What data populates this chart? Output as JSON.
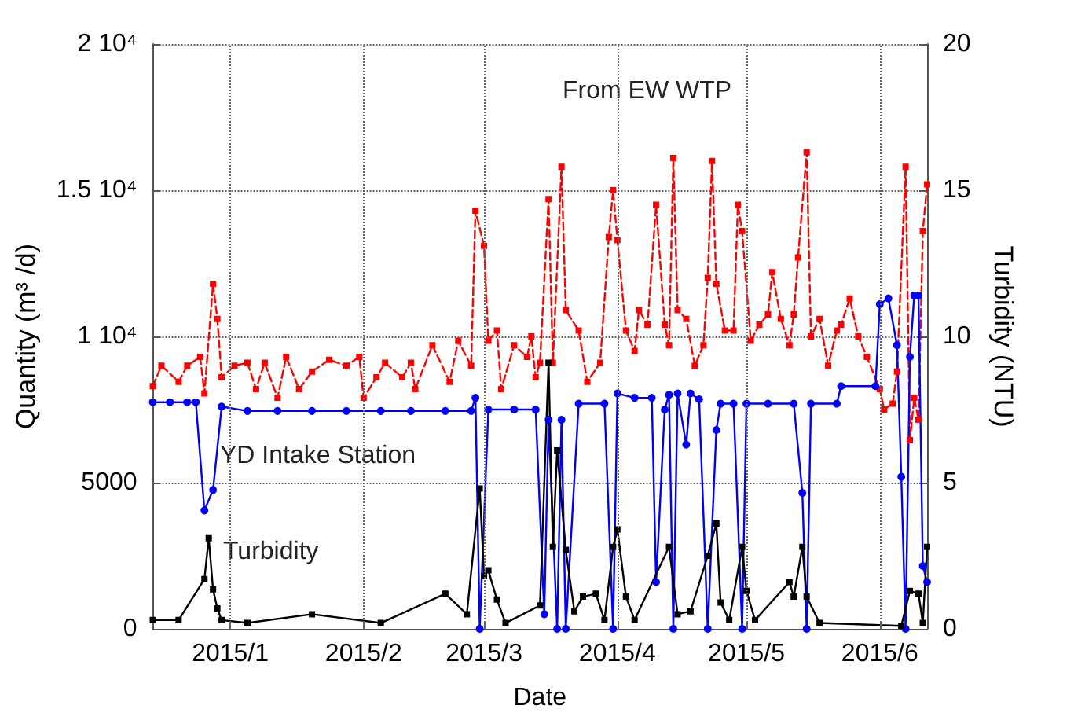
{
  "chart_data": {
    "type": "line",
    "xlabel": "Date",
    "ylabel": "Quantity (m³ /d)",
    "y2label": "Turbidity (NTU)",
    "xlim": [
      "2014-12-14",
      "2015-06-12"
    ],
    "xticks": [
      {
        "value": "2015-01-01",
        "label": "2015/1"
      },
      {
        "value": "2015-02-01",
        "label": "2015/2"
      },
      {
        "value": "2015-03-01",
        "label": "2015/3"
      },
      {
        "value": "2015-04-01",
        "label": "2015/4"
      },
      {
        "value": "2015-05-01",
        "label": "2015/5"
      },
      {
        "value": "2015-06-01",
        "label": "2015/6"
      }
    ],
    "ylim": [
      0,
      20000
    ],
    "yticks": [
      0,
      5000,
      {
        "value": 10000,
        "label": "1 10⁴"
      },
      {
        "value": 15000,
        "label": "1.5 10⁴"
      },
      {
        "value": 20000,
        "label": "2 10⁴"
      }
    ],
    "y2lim": [
      0,
      20
    ],
    "y2ticks": [
      0,
      5,
      10,
      15,
      20
    ],
    "grid": true,
    "legend": false,
    "series": [
      {
        "name": "From EW WTP",
        "color": "#ff0000",
        "marker": "square",
        "line_style": "dashed",
        "x": [
          "2014-12-14",
          "2014-12-16",
          "2014-12-20",
          "2014-12-22",
          "2014-12-25",
          "2014-12-26",
          "2014-12-28",
          "2014-12-29",
          "2014-12-30",
          "2015-01-02",
          "2015-01-05",
          "2015-01-07",
          "2015-01-09",
          "2015-01-12",
          "2015-01-14",
          "2015-01-17",
          "2015-01-20",
          "2015-01-24",
          "2015-01-28",
          "2015-01-31",
          "2015-02-01",
          "2015-02-04",
          "2015-02-06",
          "2015-02-10",
          "2015-02-12",
          "2015-02-13",
          "2015-02-17",
          "2015-02-21",
          "2015-02-23",
          "2015-02-26",
          "2015-02-27",
          "2015-03-01",
          "2015-03-02",
          "2015-03-04",
          "2015-03-05",
          "2015-03-08",
          "2015-03-11",
          "2015-03-12",
          "2015-03-13",
          "2015-03-14",
          "2015-03-16",
          "2015-03-17",
          "2015-03-19",
          "2015-03-20",
          "2015-03-23",
          "2015-03-25",
          "2015-03-28",
          "2015-03-30",
          "2015-03-31",
          "2015-04-01",
          "2015-04-03",
          "2015-04-05",
          "2015-04-06",
          "2015-04-08",
          "2015-04-10",
          "2015-04-12",
          "2015-04-13",
          "2015-04-14",
          "2015-04-15",
          "2015-04-17",
          "2015-04-19",
          "2015-04-21",
          "2015-04-22",
          "2015-04-23",
          "2015-04-24",
          "2015-04-26",
          "2015-04-28",
          "2015-04-29",
          "2015-04-30",
          "2015-05-02",
          "2015-05-04",
          "2015-05-06",
          "2015-05-07",
          "2015-05-09",
          "2015-05-11",
          "2015-05-12",
          "2015-05-13",
          "2015-05-15",
          "2015-05-16",
          "2015-05-18",
          "2015-05-20",
          "2015-05-22",
          "2015-05-23",
          "2015-05-25",
          "2015-05-27",
          "2015-05-29",
          "2015-06-01",
          "2015-06-02",
          "2015-06-04",
          "2015-06-05",
          "2015-06-07",
          "2015-06-08",
          "2015-06-09",
          "2015-06-10",
          "2015-06-11",
          "2015-06-12"
        ],
        "values": [
          8300,
          9000,
          8450,
          9000,
          9300,
          8050,
          11800,
          10600,
          8600,
          9000,
          9100,
          8200,
          9100,
          7900,
          9300,
          8200,
          8800,
          9200,
          9000,
          9300,
          7900,
          8600,
          9100,
          8600,
          9100,
          8200,
          9700,
          8450,
          9850,
          9000,
          14300,
          13100,
          9850,
          10200,
          8200,
          9700,
          9300,
          10000,
          8600,
          9100,
          14700,
          9100,
          15800,
          10900,
          10200,
          8450,
          9100,
          13400,
          15000,
          13300,
          10200,
          9500,
          10900,
          10400,
          14500,
          10400,
          9700,
          16100,
          10900,
          10600,
          9000,
          9700,
          12000,
          16000,
          11800,
          10200,
          10200,
          14500,
          13600,
          9850,
          10400,
          10750,
          12200,
          10600,
          9700,
          10750,
          12700,
          16300,
          10000,
          10600,
          9000,
          10200,
          10400,
          11300,
          10000,
          9300,
          8200,
          7500,
          7700,
          8800,
          15800,
          6450,
          7900,
          7150,
          13600,
          15200
        ]
      },
      {
        "name": "YD Intake Station",
        "color": "#0000ff",
        "marker": "circle",
        "line_style": "solid",
        "x": [
          "2014-12-14",
          "2014-12-18",
          "2014-12-22",
          "2014-12-24",
          "2014-12-26",
          "2014-12-28",
          "2014-12-30",
          "2015-01-05",
          "2015-01-12",
          "2015-01-20",
          "2015-01-28",
          "2015-02-05",
          "2015-02-12",
          "2015-02-20",
          "2015-02-26",
          "2015-02-27",
          "2015-02-28",
          "2015-03-02",
          "2015-03-08",
          "2015-03-13",
          "2015-03-15",
          "2015-03-16",
          "2015-03-18",
          "2015-03-19",
          "2015-03-20",
          "2015-03-23",
          "2015-03-29",
          "2015-03-31",
          "2015-04-01",
          "2015-04-05",
          "2015-04-09",
          "2015-04-10",
          "2015-04-12",
          "2015-04-13",
          "2015-04-14",
          "2015-04-15",
          "2015-04-17",
          "2015-04-18",
          "2015-04-20",
          "2015-04-22",
          "2015-04-24",
          "2015-04-25",
          "2015-04-28",
          "2015-04-30",
          "2015-05-01",
          "2015-05-06",
          "2015-05-12",
          "2015-05-14",
          "2015-05-15",
          "2015-05-16",
          "2015-05-22",
          "2015-05-23",
          "2015-05-31",
          "2015-06-01",
          "2015-06-03",
          "2015-06-05",
          "2015-06-06",
          "2015-06-07",
          "2015-06-08",
          "2015-06-09",
          "2015-06-10",
          "2015-06-11",
          "2015-06-12"
        ],
        "values": [
          7750,
          7750,
          7750,
          7750,
          4050,
          4750,
          7600,
          7450,
          7450,
          7450,
          7450,
          7450,
          7450,
          7450,
          7450,
          7900,
          0,
          7500,
          7500,
          7500,
          500,
          7150,
          0,
          7150,
          0,
          7700,
          7700,
          0,
          8050,
          7900,
          7900,
          1600,
          7500,
          8000,
          0,
          8050,
          6300,
          8050,
          7850,
          0,
          6800,
          7700,
          7700,
          0,
          7700,
          7700,
          7700,
          4650,
          0,
          7700,
          7700,
          8300,
          8300,
          11100,
          11300,
          9700,
          5200,
          0,
          9300,
          11400,
          11400,
          2150,
          1600
        ]
      },
      {
        "name": "Turbidity",
        "color": "#000000",
        "marker": "square",
        "line_style": "solid",
        "axis": "y2",
        "x": [
          "2014-12-14",
          "2014-12-20",
          "2014-12-26",
          "2014-12-27",
          "2014-12-28",
          "2014-12-29",
          "2014-12-30",
          "2015-01-05",
          "2015-01-20",
          "2015-02-05",
          "2015-02-20",
          "2015-02-25",
          "2015-02-28",
          "2015-03-01",
          "2015-03-02",
          "2015-03-04",
          "2015-03-06",
          "2015-03-14",
          "2015-03-16",
          "2015-03-17",
          "2015-03-18",
          "2015-03-20",
          "2015-03-22",
          "2015-03-24",
          "2015-03-27",
          "2015-03-29",
          "2015-03-31",
          "2015-04-01",
          "2015-04-03",
          "2015-04-05",
          "2015-04-13",
          "2015-04-15",
          "2015-04-18",
          "2015-04-22",
          "2015-04-24",
          "2015-04-25",
          "2015-04-27",
          "2015-04-30",
          "2015-05-01",
          "2015-05-03",
          "2015-05-11",
          "2015-05-12",
          "2015-05-14",
          "2015-05-15",
          "2015-05-18",
          "2015-06-06",
          "2015-06-08",
          "2015-06-10",
          "2015-06-11",
          "2015-06-12"
        ],
        "values": [
          0.3,
          0.3,
          1.7,
          3.1,
          1.35,
          0.7,
          0.3,
          0.2,
          0.5,
          0.2,
          1.2,
          0.5,
          4.8,
          1.8,
          2.0,
          1.0,
          0.2,
          0.8,
          9.1,
          2.8,
          6.1,
          2.7,
          0.6,
          1.1,
          1.2,
          0.3,
          2.8,
          3.4,
          1.1,
          0.3,
          2.8,
          0.5,
          0.6,
          2.5,
          3.6,
          0.9,
          0.3,
          2.8,
          1.3,
          0.3,
          1.6,
          1.1,
          2.8,
          1.1,
          0.2,
          0.1,
          1.3,
          1.2,
          0.2,
          2.8
        ]
      }
    ]
  }
}
